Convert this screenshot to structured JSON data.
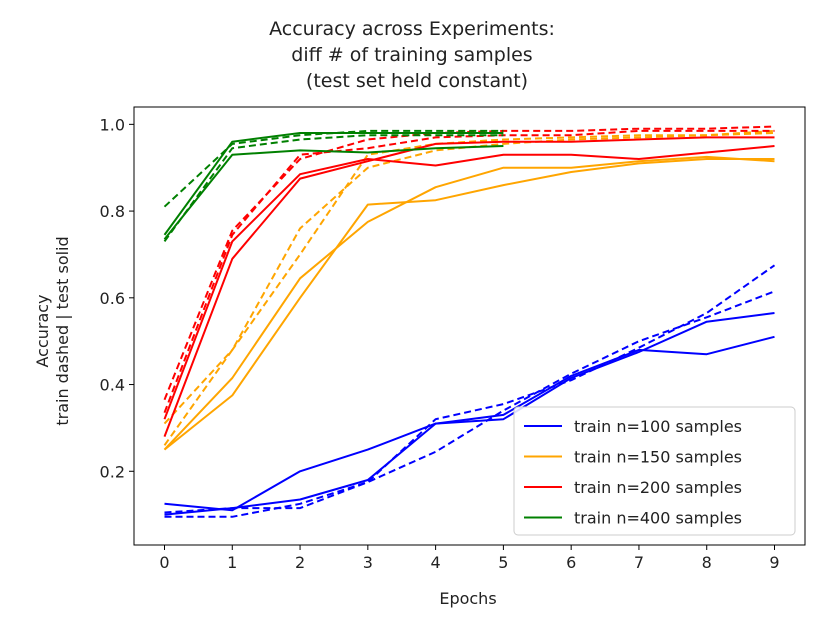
{
  "chart_data": {
    "type": "line",
    "title_lines": [
      "Accuracy across Experiments:",
      "diff # of training samples",
      "(test set held constant)"
    ],
    "xlabel": "Epochs",
    "ylabel_lines": [
      "Accuracy",
      "train dashed | test solid"
    ],
    "xlim": [
      -0.45,
      9.45
    ],
    "ylim": [
      0.03,
      1.04
    ],
    "xticks": [
      0,
      1,
      2,
      3,
      4,
      5,
      6,
      7,
      8,
      9
    ],
    "yticks": [
      0.2,
      0.4,
      0.6,
      0.8,
      1.0
    ],
    "ytick_labels": [
      "0.2",
      "0.4",
      "0.6",
      "0.8",
      "1.0"
    ],
    "legend_position": "lower-right",
    "series": [
      {
        "name": "train n=100 samples",
        "color": "#0000ff",
        "style": "solid",
        "x": [
          0,
          1,
          2,
          3,
          4,
          5,
          6,
          7,
          8,
          9
        ],
        "y": [
          0.125,
          0.11,
          0.2,
          0.25,
          0.31,
          0.33,
          0.42,
          0.48,
          0.47,
          0.51
        ]
      },
      {
        "name": "",
        "color": "#0000ff",
        "style": "solid",
        "x": [
          0,
          1,
          2,
          3,
          4,
          5,
          6,
          7,
          8,
          9
        ],
        "y": [
          0.1,
          0.115,
          0.135,
          0.18,
          0.31,
          0.32,
          0.415,
          0.475,
          0.545,
          0.565
        ]
      },
      {
        "name": "",
        "color": "#0000ff",
        "style": "dashed",
        "x": [
          0,
          1,
          2,
          3,
          4,
          5,
          6,
          7,
          8,
          9
        ],
        "y": [
          0.095,
          0.095,
          0.125,
          0.175,
          0.245,
          0.34,
          0.425,
          0.5,
          0.555,
          0.615
        ]
      },
      {
        "name": "",
        "color": "#0000ff",
        "style": "dashed",
        "x": [
          0,
          1,
          2,
          3,
          4,
          5,
          6,
          7,
          8,
          9
        ],
        "y": [
          0.105,
          0.115,
          0.115,
          0.175,
          0.32,
          0.355,
          0.41,
          0.485,
          0.565,
          0.675
        ]
      },
      {
        "name": "train n=150 samples",
        "color": "#ffa500",
        "style": "solid",
        "x": [
          0,
          1,
          2,
          3,
          4,
          5,
          6,
          7,
          8,
          9
        ],
        "y": [
          0.25,
          0.375,
          0.6,
          0.815,
          0.825,
          0.86,
          0.89,
          0.91,
          0.92,
          0.92
        ]
      },
      {
        "name": "",
        "color": "#ffa500",
        "style": "solid",
        "x": [
          0,
          1,
          2,
          3,
          4,
          5,
          6,
          7,
          8,
          9
        ],
        "y": [
          0.25,
          0.415,
          0.645,
          0.775,
          0.855,
          0.9,
          0.9,
          0.915,
          0.925,
          0.915
        ]
      },
      {
        "name": "",
        "color": "#ffa500",
        "style": "dashed",
        "x": [
          0,
          1,
          2,
          3,
          4,
          5,
          6,
          7,
          8,
          9
        ],
        "y": [
          0.26,
          0.48,
          0.76,
          0.9,
          0.94,
          0.955,
          0.965,
          0.97,
          0.975,
          0.98
        ]
      },
      {
        "name": "",
        "color": "#ffa500",
        "style": "dashed",
        "x": [
          0,
          1,
          2,
          3,
          4,
          5,
          6,
          7,
          8,
          9
        ],
        "y": [
          0.31,
          0.48,
          0.7,
          0.93,
          0.955,
          0.965,
          0.97,
          0.975,
          0.975,
          0.985
        ]
      },
      {
        "name": "train n=200 samples",
        "color": "#ff0000",
        "style": "solid",
        "x": [
          0,
          1,
          2,
          3,
          4,
          5,
          6,
          7,
          8,
          9
        ],
        "y": [
          0.28,
          0.69,
          0.875,
          0.915,
          0.955,
          0.96,
          0.96,
          0.965,
          0.97,
          0.97
        ]
      },
      {
        "name": "",
        "color": "#ff0000",
        "style": "solid",
        "x": [
          0,
          1,
          2,
          3,
          4,
          5,
          6,
          7,
          8,
          9
        ],
        "y": [
          0.32,
          0.73,
          0.885,
          0.92,
          0.905,
          0.93,
          0.93,
          0.92,
          0.935,
          0.95
        ]
      },
      {
        "name": "",
        "color": "#ff0000",
        "style": "dashed",
        "x": [
          0,
          1,
          2,
          3,
          4,
          5,
          6,
          7,
          8,
          9
        ],
        "y": [
          0.335,
          0.745,
          0.93,
          0.945,
          0.97,
          0.975,
          0.975,
          0.985,
          0.985,
          0.985
        ]
      },
      {
        "name": "",
        "color": "#ff0000",
        "style": "dashed",
        "x": [
          0,
          1,
          2,
          3,
          4,
          5,
          6,
          7,
          8,
          9
        ],
        "y": [
          0.365,
          0.755,
          0.92,
          0.965,
          0.98,
          0.985,
          0.985,
          0.99,
          0.99,
          0.995
        ]
      },
      {
        "name": "train n=400 samples",
        "color": "#008000",
        "style": "solid",
        "x": [
          0,
          1,
          2,
          3,
          4,
          5
        ],
        "y": [
          0.735,
          0.93,
          0.94,
          0.935,
          0.945,
          0.95
        ]
      },
      {
        "name": "",
        "color": "#008000",
        "style": "solid",
        "x": [
          0,
          1,
          2,
          3,
          4,
          5
        ],
        "y": [
          0.745,
          0.96,
          0.98,
          0.98,
          0.98,
          0.98
        ]
      },
      {
        "name": "",
        "color": "#008000",
        "style": "dashed",
        "x": [
          0,
          1,
          2,
          3,
          4,
          5
        ],
        "y": [
          0.81,
          0.955,
          0.975,
          0.985,
          0.985,
          0.985
        ]
      },
      {
        "name": "",
        "color": "#008000",
        "style": "dashed",
        "x": [
          0,
          1,
          2,
          3,
          4,
          5
        ],
        "y": [
          0.73,
          0.945,
          0.965,
          0.975,
          0.975,
          0.975
        ]
      }
    ]
  }
}
